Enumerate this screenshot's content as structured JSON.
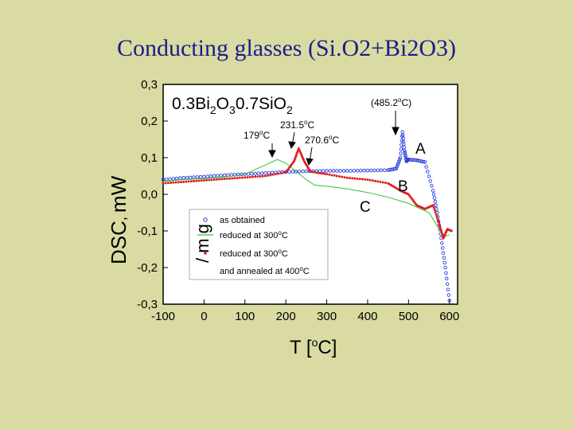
{
  "slide": {
    "title": "Conducting glasses (Si.O2+Bi2O3)"
  },
  "chart_data": {
    "type": "scatter",
    "title": "0.3Bi2O30.7SiO2",
    "xlabel": "T [oC]",
    "ylabel": "DSC, mW/mg",
    "xlim": [
      -100,
      620
    ],
    "ylim": [
      -0.3,
      0.3
    ],
    "x_ticks": [
      "-100",
      "0",
      "100",
      "200",
      "300",
      "400",
      "500",
      "600"
    ],
    "y_ticks": [
      "0,3",
      "0,2",
      "0,1",
      "0,0",
      "-0,1",
      "-0,2",
      "-0,3"
    ],
    "legend_position": "lower-left",
    "legend": [
      "as obtained",
      "reduced at 300oC",
      "reduced at 300oC",
      "and annealed at 400oC"
    ],
    "series": [
      {
        "name": "as obtained",
        "color": "#2a3fe0",
        "style": "circles",
        "x": [
          -100,
          -50,
          0,
          50,
          100,
          150,
          200,
          250,
          300,
          350,
          400,
          450,
          470,
          480,
          485.2,
          490,
          495,
          500,
          520,
          540,
          560,
          570,
          580,
          590,
          600
        ],
        "y": [
          0.04,
          0.045,
          0.048,
          0.052,
          0.055,
          0.058,
          0.061,
          0.063,
          0.064,
          0.064,
          0.065,
          0.066,
          0.07,
          0.1,
          0.17,
          0.12,
          0.09,
          0.095,
          0.093,
          0.088,
          0.01,
          -0.05,
          -0.12,
          -0.2,
          -0.29
        ]
      },
      {
        "name": "reduced at 300oC",
        "color": "#33c233",
        "style": "line",
        "x": [
          -100,
          -50,
          0,
          50,
          100,
          150,
          179,
          200,
          250,
          270.6,
          300,
          350,
          400,
          450,
          500,
          530,
          550,
          575,
          590,
          600
        ],
        "y": [
          0.035,
          0.04,
          0.043,
          0.047,
          0.055,
          0.08,
          0.095,
          0.085,
          0.04,
          0.025,
          0.022,
          0.015,
          0.005,
          -0.008,
          -0.025,
          -0.04,
          -0.05,
          -0.095,
          -0.115,
          -0.11
        ]
      },
      {
        "name": "reduced at 300oC and annealed at 400oC",
        "color": "#dd2222",
        "style": "dots",
        "x": [
          -100,
          -50,
          0,
          50,
          100,
          150,
          200,
          220,
          231.5,
          245,
          260,
          300,
          350,
          400,
          450,
          480,
          500,
          520,
          540,
          560,
          575,
          585,
          595,
          605
        ],
        "y": [
          0.03,
          0.034,
          0.038,
          0.042,
          0.046,
          0.05,
          0.06,
          0.09,
          0.125,
          0.09,
          0.062,
          0.055,
          0.045,
          0.04,
          0.03,
          0.01,
          0.0,
          -0.03,
          -0.04,
          -0.03,
          -0.08,
          -0.12,
          -0.095,
          -0.1
        ]
      }
    ],
    "annotations": [
      {
        "text": "(485.2oC)",
        "x": 485.2
      },
      {
        "text": "231.5oC",
        "x": 231.5
      },
      {
        "text": "179oC",
        "x": 179
      },
      {
        "text": "270.6oC",
        "x": 270.6
      },
      {
        "text": "A"
      },
      {
        "text": "B"
      },
      {
        "text": "C"
      }
    ]
  }
}
